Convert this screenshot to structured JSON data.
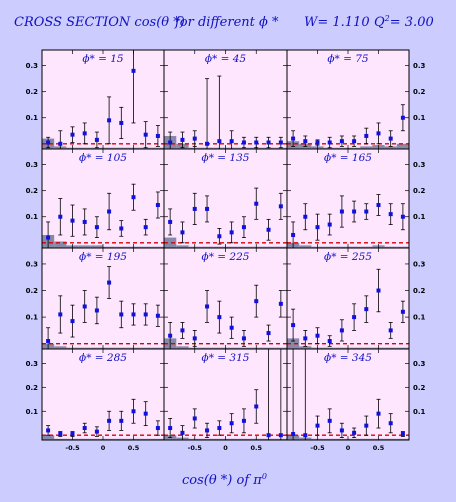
{
  "figure": {
    "title_parts": {
      "main": "CROSS SECTION  cos(θ *)",
      "phi": "for different  ϕ *",
      "w": "W= 1.110",
      "q2_label": "Q",
      "q2_sup": "2",
      "q2_value": "= 3.00"
    },
    "xlabel": "cos(θ *)  of  π",
    "xlabel_sup": "0",
    "colors": {
      "background": "#ccccff",
      "panel": "#ffe6ff",
      "marker": "#1111dd",
      "hist": "#8888aa",
      "zero_line": "#dd0000"
    }
  },
  "chart_data": {
    "type": "scatter",
    "panel_grid": {
      "rows": 4,
      "cols": 3
    },
    "xlim": [
      -1,
      1
    ],
    "ylim": [
      -0.02,
      0.36
    ],
    "yticks": [
      {
        "v": 0.1,
        "label": "0.1"
      },
      {
        "v": 0.2,
        "label": "0.2"
      },
      {
        "v": 0.3,
        "label": "0.3"
      }
    ],
    "xticks": [
      {
        "v": -0.5,
        "label": "-0.5"
      },
      {
        "v": 0,
        "label": "0"
      },
      {
        "v": 0.5,
        "label": "0.5"
      }
    ],
    "x": [
      -0.9,
      -0.7,
      -0.5,
      -0.3,
      -0.1,
      0.1,
      0.3,
      0.5,
      0.7,
      0.9
    ],
    "panels": [
      {
        "phi_label": "ϕ* = 15",
        "y": [
          0.005,
          0.0,
          0.035,
          0.04,
          0.015,
          0.09,
          0.08,
          0.28,
          0.035,
          0.03
        ],
        "err": [
          0.02,
          0.05,
          0.03,
          0.04,
          0.03,
          0.09,
          0.06,
          0.2,
          0.05,
          0.04
        ],
        "sys": [
          0.04,
          0.01,
          0.005,
          0.005,
          0.005,
          0.005,
          0.005,
          0.005,
          0.005,
          0.005
        ]
      },
      {
        "phi_label": "ϕ* = 45",
        "y": [
          0.005,
          0.015,
          0.02,
          0.0,
          0.01,
          0.01,
          0.005,
          0.005,
          0.005,
          0.005
        ],
        "err": [
          0.04,
          0.03,
          0.03,
          0.25,
          0.25,
          0.04,
          0.02,
          0.02,
          0.02,
          0.02
        ],
        "sys": [
          0.05,
          0.02,
          0.005,
          0.005,
          0.005,
          0.005,
          0.005,
          0.005,
          0.005,
          0.005
        ]
      },
      {
        "phi_label": "ϕ* = 75",
        "y": [
          0.02,
          0.01,
          0.005,
          0.005,
          0.01,
          0.01,
          0.03,
          0.04,
          0.02,
          0.1
        ],
        "err": [
          0.03,
          0.02,
          0.01,
          0.02,
          0.02,
          0.02,
          0.03,
          0.04,
          0.03,
          0.05
        ],
        "sys": [
          0.03,
          0.02,
          0.01,
          0.005,
          0.005,
          0.005,
          0.01,
          0.015,
          0.01,
          0.02
        ]
      },
      {
        "phi_label": "ϕ* = 105",
        "y": [
          0.02,
          0.1,
          0.085,
          0.08,
          0.06,
          0.12,
          0.055,
          0.175,
          0.06,
          0.145
        ],
        "err": [
          0.06,
          0.07,
          0.06,
          0.05,
          0.04,
          0.07,
          0.03,
          0.05,
          0.03,
          0.05
        ],
        "sys": [
          0.05,
          0.025,
          0.01,
          0.01,
          0.01,
          0.005,
          0.005,
          0.005,
          0.005,
          0.005
        ]
      },
      {
        "phi_label": "ϕ* = 135",
        "y": [
          0.08,
          0.04,
          0.13,
          0.13,
          0.025,
          0.04,
          0.06,
          0.15,
          0.05,
          0.14
        ],
        "err": [
          0.05,
          0.04,
          0.06,
          0.05,
          0.03,
          0.04,
          0.04,
          0.06,
          0.04,
          0.05
        ],
        "sys": [
          0.04,
          0.01,
          0.005,
          0.005,
          0.005,
          0.005,
          0.005,
          0.005,
          0.005,
          0.005
        ]
      },
      {
        "phi_label": "ϕ* = 165",
        "y": [
          0.03,
          0.1,
          0.06,
          0.07,
          0.12,
          0.12,
          0.12,
          0.145,
          0.11,
          0.1
        ],
        "err": [
          0.05,
          0.05,
          0.05,
          0.04,
          0.06,
          0.04,
          0.03,
          0.04,
          0.04,
          0.05
        ],
        "sys": [
          0.02,
          0.01,
          0.005,
          0.005,
          0.005,
          0.005,
          0.005,
          0.01,
          0.005,
          0.005
        ]
      },
      {
        "phi_label": "ϕ* = 195",
        "y": [
          0.01,
          0.11,
          0.085,
          0.14,
          0.125,
          0.23,
          0.11,
          0.11,
          0.11,
          0.105
        ],
        "err": [
          0.05,
          0.07,
          0.06,
          0.06,
          0.05,
          0.06,
          0.05,
          0.04,
          0.04,
          0.04
        ],
        "sys": [
          0.02,
          0.01,
          0.005,
          0.005,
          0.005,
          0.005,
          0.005,
          0.005,
          0.005,
          0.005
        ]
      },
      {
        "phi_label": "ϕ* = 225",
        "y": [
          0.03,
          0.05,
          0.02,
          0.14,
          0.1,
          0.06,
          0.02,
          0.16,
          0.04,
          0.15
        ],
        "err": [
          0.05,
          0.03,
          0.03,
          0.06,
          0.06,
          0.04,
          0.03,
          0.06,
          0.03,
          0.05
        ],
        "sys": [
          0.04,
          0.01,
          0.005,
          0.005,
          0.005,
          0.005,
          0.005,
          0.005,
          0.005,
          0.005
        ]
      },
      {
        "phi_label": "ϕ* = 255",
        "y": [
          0.07,
          0.02,
          0.03,
          0.01,
          0.05,
          0.1,
          0.13,
          0.2,
          0.05,
          0.12
        ],
        "err": [
          0.06,
          0.03,
          0.03,
          0.02,
          0.04,
          0.05,
          0.05,
          0.08,
          0.03,
          0.04
        ],
        "sys": [
          0.04,
          0.01,
          0.005,
          0.005,
          0.005,
          0.005,
          0.005,
          0.005,
          0.005,
          0.005
        ]
      },
      {
        "phi_label": "ϕ* = 285",
        "y": [
          0.02,
          0.005,
          0.005,
          0.03,
          0.015,
          0.06,
          0.06,
          0.1,
          0.09,
          0.03
        ],
        "err": [
          0.02,
          0.01,
          0.01,
          0.02,
          0.02,
          0.04,
          0.04,
          0.05,
          0.05,
          0.03
        ],
        "sys": [
          0.02,
          0.005,
          0.005,
          0.005,
          0.005,
          0.005,
          0.005,
          0.005,
          0.005,
          0.005
        ]
      },
      {
        "phi_label": "ϕ* = 315",
        "y": [
          0.03,
          0.01,
          0.07,
          0.02,
          0.03,
          0.05,
          0.06,
          0.12,
          0.0,
          0.0
        ],
        "err": [
          0.04,
          0.03,
          0.04,
          0.03,
          0.03,
          0.04,
          0.05,
          0.07,
          0.36,
          0.36
        ],
        "sys": [
          0.02,
          0.01,
          0.005,
          0.005,
          0.005,
          0.005,
          0.005,
          0.005,
          0.005,
          0.005
        ]
      },
      {
        "phi_label": "ϕ* = 345",
        "y": [
          0.005,
          0.0,
          0.04,
          0.06,
          0.02,
          0.01,
          0.04,
          0.09,
          0.05,
          0.005
        ],
        "err": [
          0.36,
          0.36,
          0.04,
          0.05,
          0.03,
          0.02,
          0.04,
          0.06,
          0.04,
          0.01
        ],
        "sys": [
          0.02,
          0.01,
          0.005,
          0.005,
          0.005,
          0.005,
          0.005,
          0.005,
          0.005,
          0.005
        ]
      }
    ]
  }
}
